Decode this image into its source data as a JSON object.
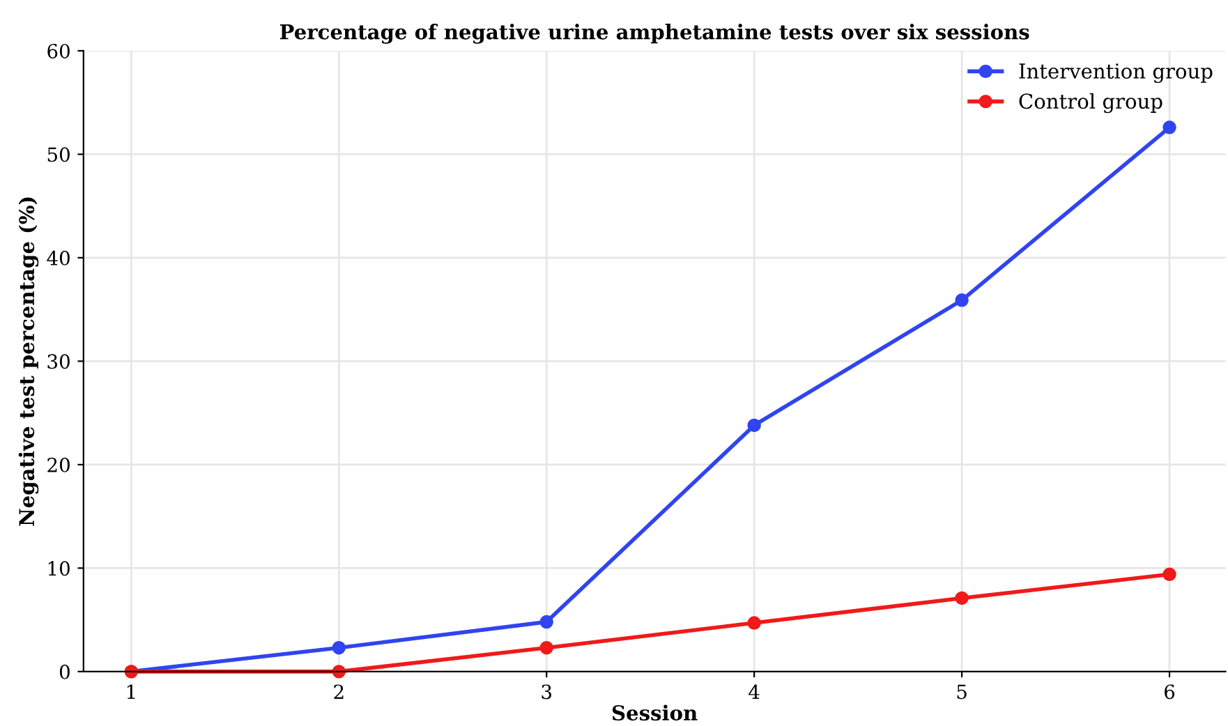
{
  "chart_data": {
    "type": "line",
    "title": "Percentage of negative urine amphetamine tests over six sessions",
    "xlabel": "Session",
    "ylabel": "Negative test percentage (%)",
    "x": [
      1,
      2,
      3,
      4,
      5,
      6
    ],
    "series": [
      {
        "name": "Intervention group",
        "color": "#3044f0",
        "values": [
          0,
          2.3,
          4.8,
          23.8,
          35.9,
          52.6
        ]
      },
      {
        "name": "Control group",
        "color": "#f01a1a",
        "values": [
          0,
          0,
          2.3,
          4.7,
          7.1,
          9.4
        ]
      }
    ],
    "xlim": [
      0.77,
      6.27
    ],
    "xticks": [
      1,
      2,
      3,
      4,
      5,
      6
    ],
    "ylim": [
      0,
      60
    ],
    "yticks": [
      0,
      10,
      20,
      30,
      40,
      50,
      60
    ],
    "grid": true,
    "legend": "top right",
    "marker": "circle",
    "line_style": "solid"
  }
}
